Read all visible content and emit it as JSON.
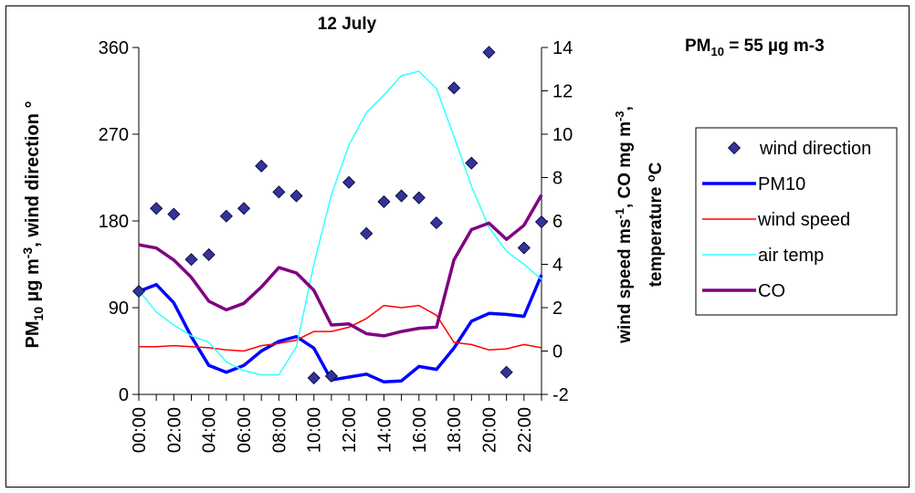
{
  "chart_data": {
    "type": "line",
    "title": "12 July",
    "annotation": {
      "prefix": "PM",
      "sub": "10",
      "suffix": " = 55 µg m-3"
    },
    "ylabel_left": {
      "p1": "PM",
      "s1": "10",
      "p2": " µg m",
      "s2": "-3",
      "p3": ", wind direction °"
    },
    "ylabel_right": {
      "line1": {
        "p1": "wind speed ms",
        "s1": "-1",
        "p2": ", CO mg m",
        "s2": "-3",
        "p3": ","
      },
      "line2": {
        "p1": "temperature ",
        "s1": "o",
        "p2": "C"
      }
    },
    "ylim_left": [
      0,
      360
    ],
    "ylim_right": [
      -2,
      14
    ],
    "left_ticks": [
      "0",
      "90",
      "180",
      "270",
      "360"
    ],
    "right_ticks": [
      "-2",
      "0",
      "2",
      "4",
      "6",
      "8",
      "10",
      "12",
      "14"
    ],
    "x": [
      "00:00",
      "01:00",
      "02:00",
      "03:00",
      "04:00",
      "05:00",
      "06:00",
      "07:00",
      "08:00",
      "09:00",
      "10:00",
      "11:00",
      "12:00",
      "13:00",
      "14:00",
      "15:00",
      "16:00",
      "17:00",
      "18:00",
      "19:00",
      "20:00",
      "21:00",
      "22:00",
      "23:00"
    ],
    "x_tick_labels": [
      "00:00",
      "02:00",
      "04:00",
      "06:00",
      "08:00",
      "10:00",
      "12:00",
      "14:00",
      "16:00",
      "18:00",
      "20:00",
      "22:00"
    ],
    "series": [
      {
        "name": "wind direction",
        "axis": "left",
        "style": "marker",
        "color": "#333399",
        "values": [
          107,
          193,
          187,
          140,
          145,
          185,
          193,
          237,
          210,
          206,
          17,
          19,
          220,
          167,
          200,
          206,
          204,
          178,
          318,
          240,
          355,
          23,
          152,
          179
        ]
      },
      {
        "name": "PM10",
        "axis": "left",
        "style": "line",
        "color": "#0000ff",
        "values": [
          107,
          114,
          95,
          60,
          30,
          23,
          30,
          45,
          55,
          60,
          48,
          15,
          18,
          21,
          13,
          14,
          29,
          26,
          48,
          76,
          84,
          83,
          81,
          124
        ]
      },
      {
        "name": "wind speed",
        "axis": "right",
        "style": "line",
        "color": "#ff0000",
        "values": [
          0.2,
          0.2,
          0.25,
          0.2,
          0.15,
          0.05,
          0.0,
          0.25,
          0.35,
          0.5,
          0.9,
          0.9,
          1.1,
          1.5,
          2.1,
          2.0,
          2.1,
          1.65,
          0.4,
          0.3,
          0.05,
          0.1,
          0.3,
          0.15
        ]
      },
      {
        "name": "air temp",
        "axis": "right",
        "style": "line",
        "color": "#33ffff",
        "values": [
          2.8,
          1.8,
          1.2,
          0.7,
          0.4,
          -0.5,
          -0.9,
          -1.1,
          -1.1,
          0.2,
          4.0,
          7.2,
          9.5,
          11.0,
          11.8,
          12.7,
          12.9,
          12.1,
          9.9,
          7.6,
          5.7,
          4.6,
          4.0,
          3.3
        ]
      },
      {
        "name": "CO",
        "axis": "right",
        "style": "line",
        "color": "#800080",
        "values": [
          4.9,
          4.75,
          4.2,
          3.4,
          2.3,
          1.9,
          2.2,
          2.95,
          3.85,
          3.6,
          2.8,
          1.2,
          1.25,
          0.8,
          0.7,
          0.9,
          1.05,
          1.1,
          4.2,
          5.6,
          5.9,
          5.15,
          5.8,
          7.2
        ]
      }
    ],
    "legend": [
      {
        "label": "wind direction"
      },
      {
        "label": "PM10"
      },
      {
        "label": "wind speed"
      },
      {
        "label": "air temp"
      },
      {
        "label": "CO"
      }
    ],
    "legend_position": "right",
    "grid": false
  }
}
